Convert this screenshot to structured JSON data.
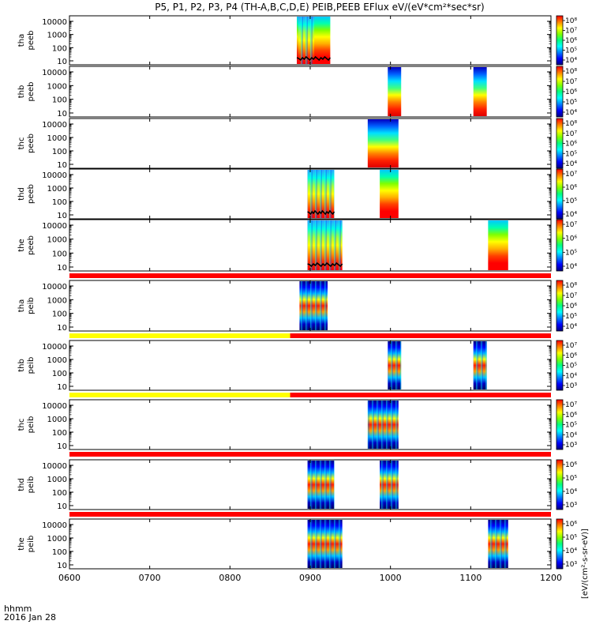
{
  "chart_data": {
    "type": "heatmap",
    "title": "P5, P1, P2, P3, P4 (TH-A,B,C,D,E) PEIB,PEEB EFlux eV/(eV*cm²*sec*sr)",
    "x_axis": {
      "range": [
        "0600",
        "1200"
      ],
      "ticks": [
        "0600",
        "0700",
        "0800",
        "0900",
        "1000",
        "1100",
        "1200"
      ],
      "label_line1": "hhmm",
      "label_line2": "2016 Jan 28"
    },
    "y_ticks": [
      "10000",
      "1000",
      "100",
      "10"
    ],
    "y_scale": "log",
    "colorbar_label": "[eV/(cm²-s-sr-eV)]",
    "colorbar_colors": [
      "#000080",
      "#0000ff",
      "#0080ff",
      "#00ffff",
      "#00ff80",
      "#80ff00",
      "#ffff00",
      "#ff8000",
      "#ff0000"
    ],
    "status_bar_colors": {
      "yellow": "#ffff00",
      "red": "#ff0000"
    },
    "panels": [
      {
        "label": [
          "tha",
          "peeb"
        ],
        "cbar_ticks": [
          "10⁸",
          "10⁷",
          "10⁶",
          "10⁵",
          "10⁴"
        ],
        "data_blocks": [
          {
            "t0": "0850",
            "t1": "0915",
            "style": "low"
          },
          {
            "t0": "0851",
            "t1": "0903",
            "style": "mix"
          }
        ],
        "marks": [
          {
            "t0": "0850",
            "t1": "0915"
          }
        ]
      },
      {
        "label": [
          "thb",
          "peeb"
        ],
        "cbar_ticks": [
          "10⁸",
          "10⁷",
          "10⁶",
          "10⁵",
          "10⁴"
        ],
        "data_blocks": [
          {
            "t0": "0958",
            "t1": "1008",
            "style": "rainbow"
          },
          {
            "t0": "1102",
            "t1": "1112",
            "style": "rainbow"
          }
        ],
        "marks": []
      },
      {
        "label": [
          "thc",
          "peeb"
        ],
        "cbar_ticks": [
          "10⁸",
          "10⁷",
          "10⁶",
          "10⁵",
          "10⁴"
        ],
        "data_blocks": [
          {
            "t0": "0943",
            "t1": "1006",
            "style": "rainbow"
          }
        ],
        "marks": []
      },
      {
        "label": [
          "thd",
          "peeb"
        ],
        "cbar_ticks": [
          "10⁷",
          "10⁶",
          "10⁵",
          "10⁴"
        ],
        "data_blocks": [
          {
            "t0": "0858",
            "t1": "0918",
            "style": "mix"
          },
          {
            "t0": "0952",
            "t1": "1006",
            "style": "low"
          }
        ],
        "marks": [
          {
            "t0": "0858",
            "t1": "0918"
          }
        ]
      },
      {
        "label": [
          "the",
          "peeb"
        ],
        "cbar_ticks": [
          "10⁷",
          "10⁶",
          "10⁵",
          "10⁴"
        ],
        "data_blocks": [
          {
            "t0": "0858",
            "t1": "0924",
            "style": "mix"
          },
          {
            "t0": "1113",
            "t1": "1128",
            "style": "low"
          }
        ],
        "marks": [
          {
            "t0": "0858",
            "t1": "0924"
          }
        ],
        "status_bar": [
          {
            "t0": "0600",
            "t1": "1200",
            "color": "red"
          }
        ]
      },
      {
        "label": [
          "tha",
          "peib"
        ],
        "cbar_ticks": [
          "10⁸",
          "10⁷",
          "10⁶",
          "10⁵",
          "10⁴"
        ],
        "data_blocks": [
          {
            "t0": "0852",
            "t1": "0913",
            "style": "ion"
          }
        ],
        "marks": [],
        "status_bar": [
          {
            "t0": "0600",
            "t1": "0845",
            "color": "yellow"
          },
          {
            "t0": "0845",
            "t1": "1200",
            "color": "red"
          }
        ]
      },
      {
        "label": [
          "thb",
          "peib"
        ],
        "cbar_ticks": [
          "10⁷",
          "10⁶",
          "10⁵",
          "10⁴",
          "10³"
        ],
        "data_blocks": [
          {
            "t0": "0958",
            "t1": "1008",
            "style": "ion"
          },
          {
            "t0": "1102",
            "t1": "1112",
            "style": "ion"
          }
        ],
        "marks": [],
        "status_bar": [
          {
            "t0": "0600",
            "t1": "0845",
            "color": "yellow"
          },
          {
            "t0": "0845",
            "t1": "1200",
            "color": "red"
          }
        ]
      },
      {
        "label": [
          "thc",
          "peib"
        ],
        "cbar_ticks": [
          "10⁷",
          "10⁶",
          "10⁵",
          "10⁴",
          "10³"
        ],
        "data_blocks": [
          {
            "t0": "0943",
            "t1": "1006",
            "style": "ion"
          }
        ],
        "marks": [],
        "status_bar": [
          {
            "t0": "0600",
            "t1": "1200",
            "color": "red"
          }
        ]
      },
      {
        "label": [
          "thd",
          "peib"
        ],
        "cbar_ticks": [
          "10⁶",
          "10⁵",
          "10⁴",
          "10³"
        ],
        "data_blocks": [
          {
            "t0": "0858",
            "t1": "0918",
            "style": "ion"
          },
          {
            "t0": "0952",
            "t1": "1006",
            "style": "ion"
          }
        ],
        "marks": [],
        "status_bar": [
          {
            "t0": "0600",
            "t1": "1200",
            "color": "red"
          }
        ]
      },
      {
        "label": [
          "the",
          "peib"
        ],
        "cbar_ticks": [
          "10⁶",
          "10⁵",
          "10⁴",
          "10³"
        ],
        "data_blocks": [
          {
            "t0": "0858",
            "t1": "0924",
            "style": "ion"
          },
          {
            "t0": "1113",
            "t1": "1128",
            "style": "ion"
          }
        ],
        "marks": []
      }
    ]
  }
}
